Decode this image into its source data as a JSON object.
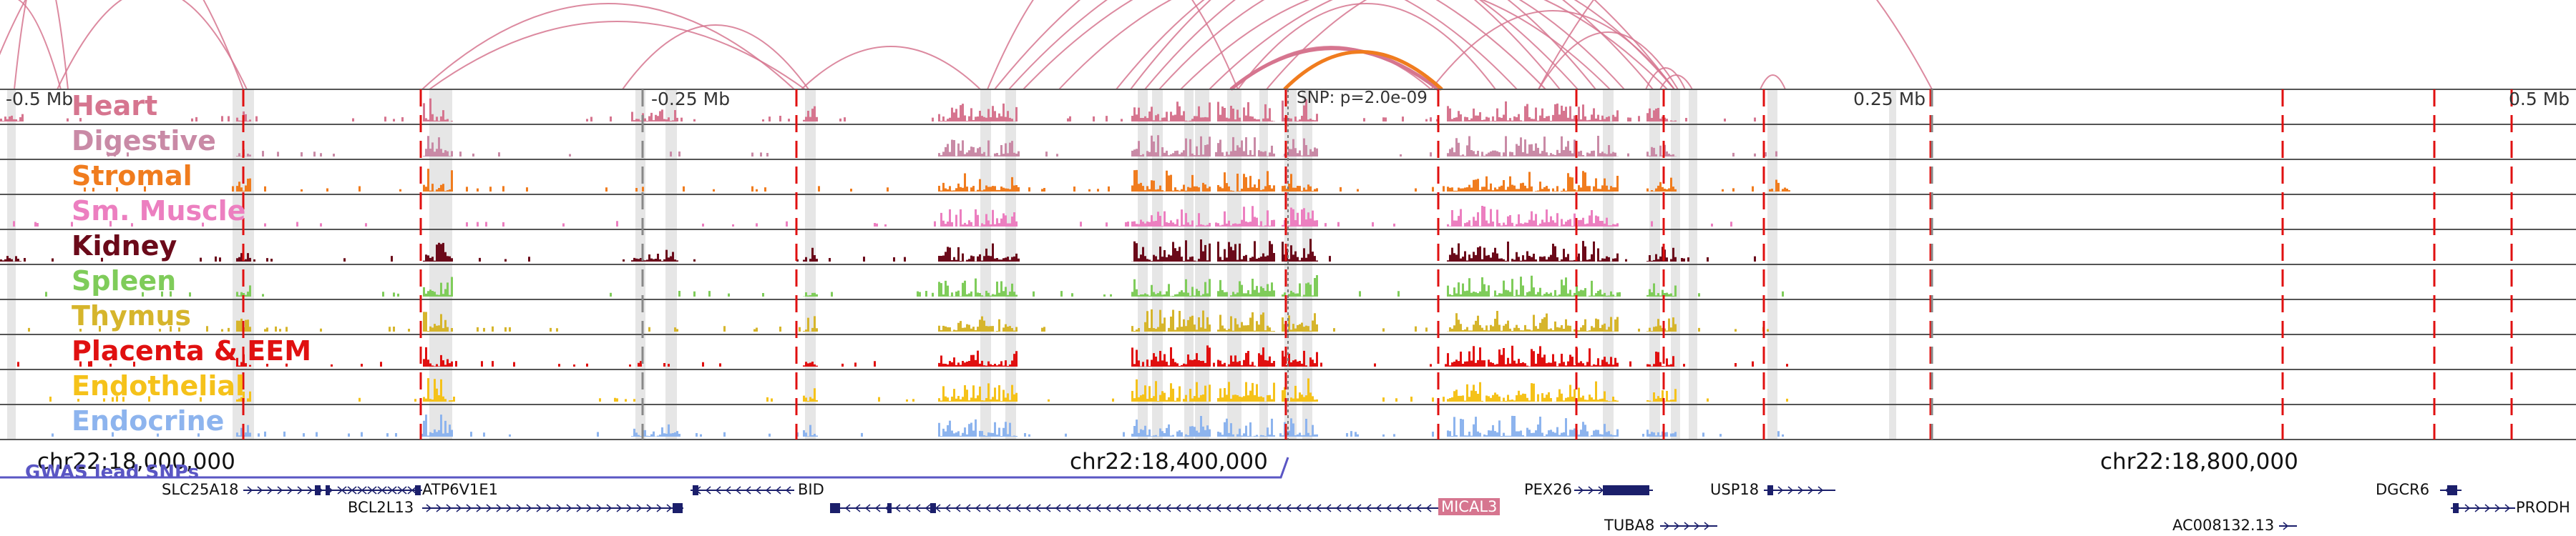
{
  "browser": {
    "ruler_labels": [
      "-0.5 Mb",
      "-0.25 Mb",
      "0.25 Mb",
      "0.5 Mb"
    ],
    "snp_label": "SNP: p=2.0e-09",
    "coordinates": [
      "chr22:18,000,000",
      "chr22:18,400,000",
      "chr22:18,800,000"
    ],
    "gwas_label": "GWAS lead SNPs",
    "highlight_color": "#d6758f",
    "snp_arc_color": "#f07c1e",
    "arc_color": "#d6758f"
  },
  "tracks": [
    {
      "label": "Heart",
      "color": "#d6758f"
    },
    {
      "label": "Digestive",
      "color": "#c98aa6"
    },
    {
      "label": "Stromal",
      "color": "#f07c1e"
    },
    {
      "label": "Sm. Muscle",
      "color": "#ec7fc0"
    },
    {
      "label": "Kidney",
      "color": "#6b0a1a"
    },
    {
      "label": "Spleen",
      "color": "#7fcc5a"
    },
    {
      "label": "Thymus",
      "color": "#d6b52c"
    },
    {
      "label": "Placenta & EEM",
      "color": "#e01010"
    },
    {
      "label": "Endothelial",
      "color": "#f5c21a"
    },
    {
      "label": "Endocrine",
      "color": "#8db4ee"
    }
  ],
  "genes": [
    {
      "name": "SLC25A18",
      "highlight": false
    },
    {
      "name": "ATP6V1E1",
      "highlight": false
    },
    {
      "name": "BID",
      "highlight": false
    },
    {
      "name": "BCL2L13",
      "highlight": false
    },
    {
      "name": "MICAL3",
      "highlight": true
    },
    {
      "name": "PEX26",
      "highlight": false
    },
    {
      "name": "TUBA8",
      "highlight": false
    },
    {
      "name": "USP18",
      "highlight": false
    },
    {
      "name": "DGCR6",
      "highlight": false
    },
    {
      "name": "PRODH",
      "highlight": false
    },
    {
      "name": "AC008132.13",
      "highlight": false
    }
  ]
}
